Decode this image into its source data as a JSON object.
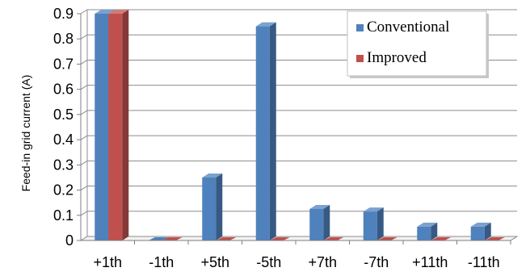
{
  "chart_data": {
    "type": "bar",
    "categories": [
      "+1th",
      "-1th",
      "+5th",
      "-5th",
      "+7th",
      "-7th",
      "+11th",
      "-11th"
    ],
    "series": [
      {
        "name": "Conventional",
        "values": [
          0.9,
          0.0,
          0.25,
          0.85,
          0.125,
          0.115,
          0.055,
          0.055
        ],
        "color": "#4f81bd"
      },
      {
        "name": "Improved",
        "values": [
          0.9,
          0.0,
          0.0,
          0.0,
          0.0,
          0.0,
          0.0,
          0.0
        ],
        "color": "#c0504d"
      }
    ],
    "yticks": [
      "0",
      "0.1",
      "0.2",
      "0.3",
      "0.4",
      "0.5",
      "0.6",
      "0.7",
      "0.8",
      "0.9"
    ],
    "ylabel": "Feed-in grid current (A)",
    "xlabel": "",
    "ylim": [
      0,
      0.9
    ],
    "grid": true,
    "legend_position": "top-right"
  }
}
